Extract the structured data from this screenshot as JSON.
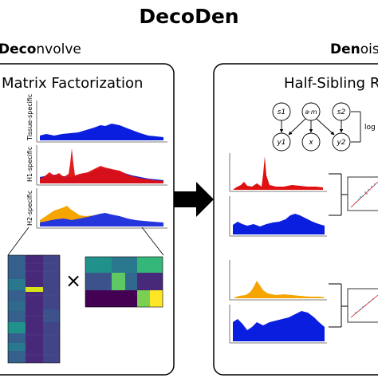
{
  "title": "DecoDen",
  "left_section": {
    "header_bold": "Deco",
    "header_rest": "nvolve",
    "panel_title": "Matrix Factorization"
  },
  "right_section": {
    "header_bold": "Den",
    "header_rest": "ois",
    "panel_title": "Half-Sibling R"
  },
  "tracks": [
    {
      "label": "Tissue-specific"
    },
    {
      "label": "H1-specific"
    },
    {
      "label": "H2-specific"
    }
  ],
  "multiply_symbol": "×",
  "graph": {
    "nodes": [
      {
        "id": "s1",
        "label": "s1"
      },
      {
        "id": "am",
        "label": "a·m"
      },
      {
        "id": "s2",
        "label": "s2"
      },
      {
        "id": "y1",
        "label": "y1"
      },
      {
        "id": "x",
        "label": "x"
      },
      {
        "id": "y2",
        "label": "y2"
      }
    ],
    "side_text": "log"
  },
  "colors": {
    "blue": "#0a1ee0",
    "red": "#e01010",
    "orange": "#f5a400",
    "arrow": "#000000",
    "panel_border": "#000000"
  }
}
